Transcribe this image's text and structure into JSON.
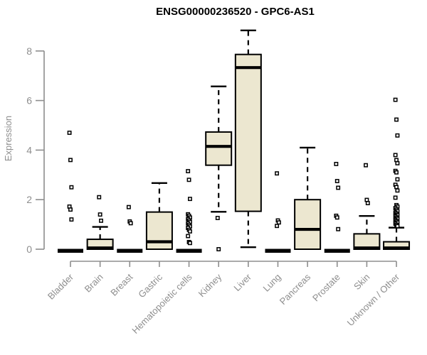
{
  "chart_data": {
    "type": "boxplot",
    "title": "ENSG00000236520 - GPC6-AS1",
    "ylabel": "Expression",
    "xlabel": "",
    "yticks": [
      0,
      2,
      4,
      6,
      8
    ],
    "ylim": [
      0,
      8.9
    ],
    "grid": false,
    "legend": "none",
    "categories": [
      "Bladder",
      "Brain",
      "Breast",
      "Gastric",
      "Hematopoietic cells",
      "Kidney",
      "Liver",
      "Lung",
      "Pancreas",
      "Prostate",
      "Skin",
      "Unknown / Other"
    ],
    "series": [
      {
        "name": "Bladder",
        "q1": 0,
        "median": 0,
        "q3": 0,
        "whisker_low": 0,
        "whisker_high": 0,
        "outliers": [
          4.7,
          3.6,
          2.5,
          1.72,
          1.6,
          1.2
        ]
      },
      {
        "name": "Brain",
        "q1": 0,
        "median": 0.05,
        "q3": 0.4,
        "whisker_low": 0,
        "whisker_high": 0.9,
        "outliers": [
          2.1,
          1.4,
          1.15
        ]
      },
      {
        "name": "Breast",
        "q1": 0,
        "median": 0,
        "q3": 0,
        "whisker_low": 0,
        "whisker_high": 0,
        "outliers": [
          1.7,
          1.12,
          1.05
        ]
      },
      {
        "name": "Gastric",
        "q1": 0,
        "median": 0.3,
        "q3": 1.5,
        "whisker_low": 0,
        "whisker_high": 2.67,
        "outliers": []
      },
      {
        "name": "Hematopoietic cells",
        "q1": 0,
        "median": 0,
        "q3": 0,
        "whisker_low": 0,
        "whisker_high": 0,
        "outliers": [
          3.15,
          2.8,
          2.03,
          1.41,
          1.35,
          1.28,
          1.22,
          1.16,
          1.1,
          1.04,
          0.98,
          0.92,
          0.86,
          0.78,
          0.72,
          0.53,
          0.29,
          0.25
        ]
      },
      {
        "name": "Kidney",
        "q1": 3.39,
        "median": 4.15,
        "q3": 4.73,
        "whisker_low": 1.51,
        "whisker_high": 6.57,
        "outliers": [
          1.26,
          0
        ]
      },
      {
        "name": "Liver",
        "q1": 1.53,
        "median": 7.33,
        "q3": 7.86,
        "whisker_low": 0.08,
        "whisker_high": 8.83,
        "outliers": []
      },
      {
        "name": "Lung",
        "q1": 0,
        "median": 0,
        "q3": 0,
        "whisker_low": 0,
        "whisker_high": 0,
        "outliers": [
          3.06,
          1.16,
          1.08,
          0.94
        ]
      },
      {
        "name": "Pancreas",
        "q1": 0,
        "median": 0.8,
        "q3": 2.0,
        "whisker_low": 0,
        "whisker_high": 4.1,
        "outliers": []
      },
      {
        "name": "Prostate",
        "q1": 0,
        "median": 0,
        "q3": 0,
        "whisker_low": 0,
        "whisker_high": 0,
        "outliers": [
          3.44,
          2.75,
          2.48,
          1.35,
          1.28,
          0.81
        ]
      },
      {
        "name": "Skin",
        "q1": 0,
        "median": 0.05,
        "q3": 0.62,
        "whisker_low": 0,
        "whisker_high": 1.34,
        "outliers": [
          3.39,
          1.99,
          1.86
        ]
      },
      {
        "name": "Unknown / Other",
        "q1": 0,
        "median": 0.05,
        "q3": 0.3,
        "whisker_low": 0,
        "whisker_high": 0.87,
        "outliers": [
          6.03,
          5.23,
          4.59,
          3.8,
          3.6,
          3.47,
          3.16,
          3.1,
          2.82,
          2.6,
          2.51,
          2.37,
          2.08,
          1.78,
          1.72,
          1.66,
          1.6,
          1.54,
          1.48,
          1.43,
          1.38,
          1.33,
          1.28,
          1.23,
          1.18,
          1.13,
          1.08,
          1.03,
          0.98,
          0.93
        ]
      }
    ],
    "style": {
      "box_fill": "#ece7d0",
      "box_stroke": "#000000",
      "median_color": "#000000",
      "outlier_fill": "#ffffff",
      "axis_color": "#8e8e8e",
      "title_color": "#000000",
      "background": "#ffffff"
    }
  }
}
